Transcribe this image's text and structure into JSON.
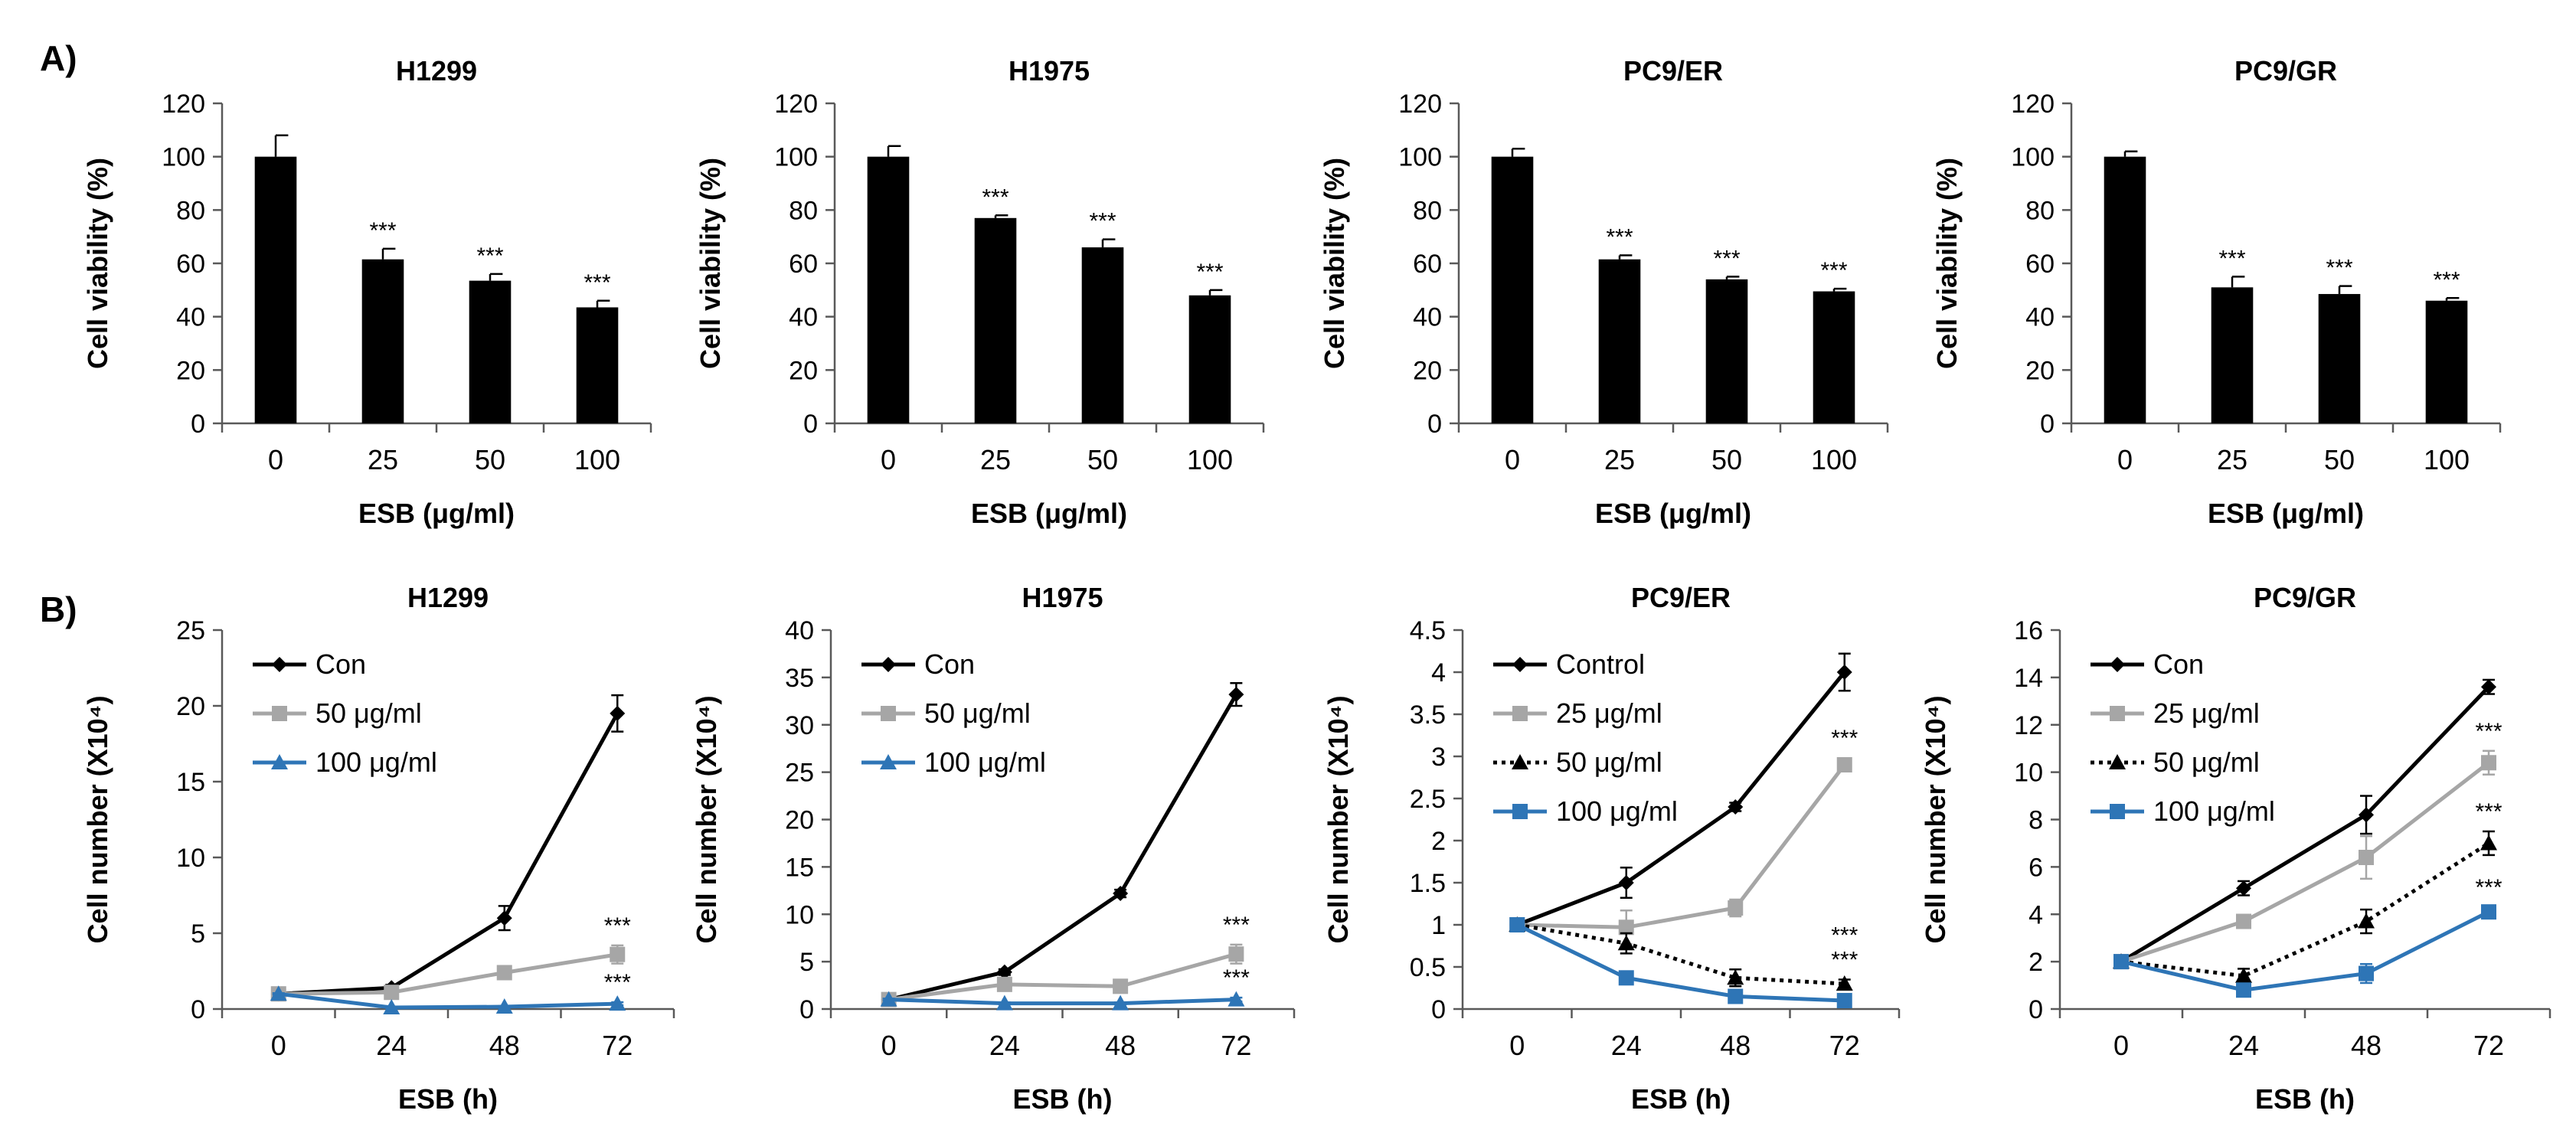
{
  "panel_labels": [
    "A)",
    "B)"
  ],
  "chart_data": [
    {
      "type": "bar",
      "panel": "A",
      "title": "H1299",
      "categories": [
        "0",
        "25",
        "50",
        "100"
      ],
      "values": [
        100,
        61.5,
        53.5,
        43.5
      ],
      "errors": [
        8,
        4,
        2.5,
        2.5
      ],
      "significance": [
        "",
        "***",
        "***",
        "***"
      ],
      "xlabel": "ESB (μg/ml)",
      "ylabel": "Cell viability (%)",
      "ylim": [
        0,
        120
      ],
      "yticks": [
        "0",
        "20",
        "40",
        "60",
        "80",
        "100",
        "120"
      ]
    },
    {
      "type": "bar",
      "panel": "A",
      "title": "H1975",
      "categories": [
        "0",
        "25",
        "50",
        "100"
      ],
      "values": [
        100,
        77,
        66,
        48
      ],
      "errors": [
        4,
        1,
        3,
        2
      ],
      "significance": [
        "",
        "***",
        "***",
        "***"
      ],
      "xlabel": "ESB (μg/ml)",
      "ylabel": "Cell viability (%)",
      "ylim": [
        0,
        120
      ],
      "yticks": [
        "0",
        "20",
        "40",
        "60",
        "80",
        "100",
        "120"
      ]
    },
    {
      "type": "bar",
      "panel": "A",
      "title": "PC9/ER",
      "categories": [
        "0",
        "25",
        "50",
        "100"
      ],
      "values": [
        100,
        61.5,
        54,
        49.5
      ],
      "errors": [
        3,
        1.5,
        1,
        1
      ],
      "significance": [
        "",
        "***",
        "***",
        "***"
      ],
      "xlabel": "ESB (μg/ml)",
      "ylabel": "Cell viability (%)",
      "ylim": [
        0,
        120
      ],
      "yticks": [
        "0",
        "20",
        "40",
        "60",
        "80",
        "100",
        "120"
      ]
    },
    {
      "type": "bar",
      "panel": "A",
      "title": "PC9/GR",
      "categories": [
        "0",
        "25",
        "50",
        "100"
      ],
      "values": [
        100,
        51,
        48.5,
        46
      ],
      "errors": [
        2,
        4,
        3,
        1
      ],
      "significance": [
        "",
        "***",
        "***",
        "***"
      ],
      "xlabel": "ESB (μg/ml)",
      "ylabel": "Cell viability (%)",
      "ylim": [
        0,
        120
      ],
      "yticks": [
        "0",
        "20",
        "40",
        "60",
        "80",
        "100",
        "120"
      ]
    },
    {
      "type": "line",
      "panel": "B",
      "title": "H1299",
      "x": [
        0,
        24,
        48,
        72
      ],
      "xticks": [
        "0",
        "24",
        "48",
        "72"
      ],
      "xlabel": "ESB (h)",
      "ylabel": "Cell number (X10⁴)",
      "ylim": [
        0,
        25
      ],
      "yticks": [
        "0",
        "5",
        "10",
        "15",
        "20",
        "25"
      ],
      "series": [
        {
          "name": "Con",
          "color": "#000000",
          "marker": "diamond",
          "dash": "solid",
          "values": [
            1.0,
            1.4,
            6.0,
            19.5
          ],
          "errors": [
            0.1,
            0.2,
            0.8,
            1.2
          ],
          "significance": ""
        },
        {
          "name": "50 μg/ml",
          "color": "#a6a6a6",
          "marker": "square",
          "dash": "solid",
          "values": [
            1.0,
            1.1,
            2.4,
            3.6
          ],
          "errors": [
            0.1,
            0.1,
            0.3,
            0.6
          ],
          "significance": "***"
        },
        {
          "name": "100 μg/ml",
          "color": "#2e75b6",
          "marker": "triangle",
          "dash": "solid",
          "values": [
            1.0,
            0.1,
            0.15,
            0.35
          ],
          "errors": [
            0.05,
            0.05,
            0.05,
            0.1
          ],
          "significance": "***"
        }
      ]
    },
    {
      "type": "line",
      "panel": "B",
      "title": "H1975",
      "x": [
        0,
        24,
        48,
        72
      ],
      "xticks": [
        "0",
        "24",
        "48",
        "72"
      ],
      "xlabel": "ESB (h)",
      "ylabel": "Cell number (X10⁴)",
      "ylim": [
        0,
        40
      ],
      "yticks": [
        "0",
        "5",
        "10",
        "15",
        "20",
        "25",
        "30",
        "35",
        "40"
      ],
      "series": [
        {
          "name": "Con",
          "color": "#000000",
          "marker": "diamond",
          "dash": "solid",
          "values": [
            1.0,
            3.9,
            12.2,
            33.2
          ],
          "errors": [
            0.1,
            0.3,
            0.4,
            1.2
          ],
          "significance": ""
        },
        {
          "name": "50 μg/ml",
          "color": "#a6a6a6",
          "marker": "square",
          "dash": "solid",
          "values": [
            1.0,
            2.6,
            2.4,
            5.8
          ],
          "errors": [
            0.1,
            0.3,
            0.3,
            1.0
          ],
          "significance": "***"
        },
        {
          "name": "100 μg/ml",
          "color": "#2e75b6",
          "marker": "triangle",
          "dash": "solid",
          "values": [
            1.0,
            0.6,
            0.6,
            1.0
          ],
          "errors": [
            0.1,
            0.1,
            0.1,
            0.2
          ],
          "significance": "***"
        }
      ]
    },
    {
      "type": "line",
      "panel": "B",
      "title": "PC9/ER",
      "x": [
        0,
        24,
        48,
        72
      ],
      "xticks": [
        "0",
        "24",
        "48",
        "72"
      ],
      "xlabel": "ESB (h)",
      "ylabel": "Cell number (X10⁴)",
      "ylim": [
        0,
        4.5
      ],
      "yticks": [
        "0",
        "0.5",
        "1",
        "1.5",
        "2",
        "2.5",
        "3",
        "3.5",
        "4",
        "4.5"
      ],
      "series": [
        {
          "name": "Control",
          "color": "#000000",
          "marker": "diamond",
          "dash": "solid",
          "values": [
            1.0,
            1.5,
            2.4,
            4.0
          ],
          "errors": [
            0.05,
            0.18,
            0.05,
            0.22
          ],
          "significance": ""
        },
        {
          "name": "25 μg/ml",
          "color": "#a6a6a6",
          "marker": "square",
          "dash": "solid",
          "values": [
            1.0,
            0.97,
            1.2,
            2.9
          ],
          "errors": [
            0.05,
            0.2,
            0.1,
            0.08
          ],
          "significance": "***"
        },
        {
          "name": "50 μg/ml",
          "color": "#000000",
          "marker": "triangle",
          "dash": "dotted",
          "values": [
            1.0,
            0.78,
            0.37,
            0.3
          ],
          "errors": [
            0.05,
            0.12,
            0.1,
            0.05
          ],
          "significance": "***"
        },
        {
          "name": "100 μg/ml",
          "color": "#2e75b6",
          "marker": "square",
          "dash": "solid",
          "values": [
            1.0,
            0.37,
            0.15,
            0.1
          ],
          "errors": [
            0.05,
            0.05,
            0.04,
            0.03
          ],
          "significance": "***"
        }
      ]
    },
    {
      "type": "line",
      "panel": "B",
      "title": "PC9/GR",
      "x": [
        0,
        24,
        48,
        72
      ],
      "xticks": [
        "0",
        "24",
        "48",
        "72"
      ],
      "xlabel": "ESB (h)",
      "ylabel": "Cell number (X10⁴)",
      "ylim": [
        0,
        16
      ],
      "yticks": [
        "0",
        "2",
        "4",
        "6",
        "8",
        "10",
        "12",
        "14",
        "16"
      ],
      "series": [
        {
          "name": "Con",
          "color": "#000000",
          "marker": "diamond",
          "dash": "solid",
          "values": [
            2.0,
            5.1,
            8.2,
            13.6
          ],
          "errors": [
            0.1,
            0.3,
            0.8,
            0.3
          ],
          "significance": ""
        },
        {
          "name": "25 μg/ml",
          "color": "#a6a6a6",
          "marker": "square",
          "dash": "solid",
          "values": [
            2.0,
            3.7,
            6.4,
            10.4
          ],
          "errors": [
            0.1,
            0.2,
            0.9,
            0.5
          ],
          "significance": "***"
        },
        {
          "name": "50 μg/ml",
          "color": "#000000",
          "marker": "triangle",
          "dash": "dotted",
          "values": [
            2.0,
            1.4,
            3.7,
            7.0
          ],
          "errors": [
            0.1,
            0.3,
            0.5,
            0.5
          ],
          "significance": "***"
        },
        {
          "name": "100 μg/ml",
          "color": "#2e75b6",
          "marker": "square",
          "dash": "solid",
          "values": [
            2.0,
            0.8,
            1.5,
            4.1
          ],
          "errors": [
            0.1,
            0.1,
            0.4,
            0.2
          ],
          "significance": "***"
        }
      ]
    }
  ]
}
